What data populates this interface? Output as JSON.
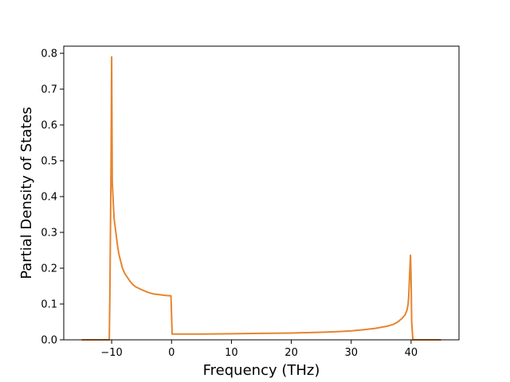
{
  "chart_data": {
    "type": "line",
    "title": "",
    "xlabel": "Frequency (THz)",
    "ylabel": "Partial Density of States",
    "xlim": [
      -18,
      48
    ],
    "ylim": [
      0.0,
      0.82
    ],
    "grid": false,
    "legend": "none",
    "x_ticks": [
      -10,
      0,
      10,
      20,
      30,
      40
    ],
    "x_tick_labels": [
      "−10",
      "0",
      "10",
      "20",
      "30",
      "40"
    ],
    "y_ticks": [
      0.0,
      0.1,
      0.2,
      0.3,
      0.4,
      0.5,
      0.6,
      0.7,
      0.8
    ],
    "y_tick_labels": [
      "0.0",
      "0.1",
      "0.2",
      "0.3",
      "0.4",
      "0.5",
      "0.6",
      "0.7",
      "0.8"
    ],
    "series": [
      {
        "color": "#e6852f",
        "x": [
          -15,
          -10.4,
          -10.3,
          -10.1,
          -10.0,
          -9.9,
          -9.6,
          -9.3,
          -9.0,
          -8.8,
          -8.5,
          -8.2,
          -7.8,
          -7.4,
          -7.0,
          -6.5,
          -6.0,
          -5.0,
          -4.0,
          -3.0,
          -2.0,
          -1.0,
          -0.3,
          -0.1,
          0.1,
          5,
          10,
          15,
          20,
          25,
          28,
          30,
          32,
          34,
          35,
          36,
          37,
          37.5,
          38,
          38.5,
          39,
          39.3,
          39.5,
          39.6,
          39.8,
          39.9,
          40.0,
          40.1,
          40.3,
          40.5,
          45
        ],
        "y": [
          0.0,
          0.0,
          0.12,
          0.5,
          0.79,
          0.44,
          0.34,
          0.3,
          0.26,
          0.24,
          0.22,
          0.2,
          0.185,
          0.175,
          0.165,
          0.155,
          0.148,
          0.14,
          0.133,
          0.128,
          0.126,
          0.124,
          0.123,
          0.123,
          0.016,
          0.016,
          0.017,
          0.018,
          0.019,
          0.021,
          0.023,
          0.025,
          0.028,
          0.032,
          0.035,
          0.038,
          0.043,
          0.047,
          0.053,
          0.06,
          0.07,
          0.082,
          0.1,
          0.12,
          0.2,
          0.236,
          0.17,
          0.05,
          0.0,
          0.0,
          0.0
        ]
      }
    ]
  }
}
